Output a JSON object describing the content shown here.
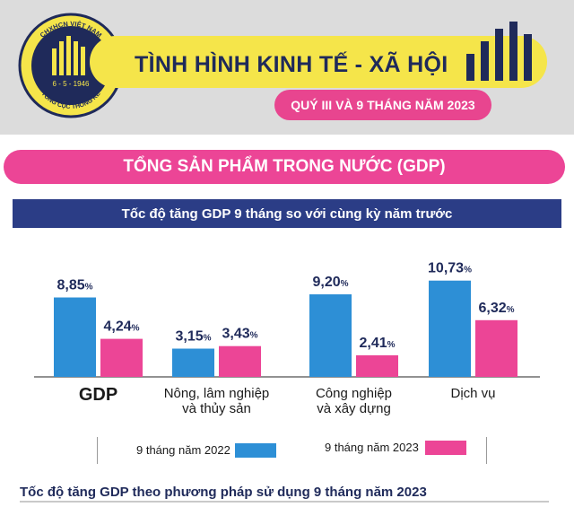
{
  "header": {
    "title": "TÌNH HÌNH KINH TẾ - XÃ HỘI",
    "subtitle": "QUÝ III VÀ 9 THÁNG NĂM 2023",
    "logo_text_top": "CHXHCN VIỆT NAM",
    "logo_text_bottom": "TỔNG CỤC THỐNG KÊ",
    "logo_date": "6 - 5 - 1946"
  },
  "section_title": "TỔNG SẢN PHẨM TRONG NƯỚC (GDP)",
  "chart_data": {
    "type": "bar",
    "title": "Tốc độ tăng GDP 9 tháng so với cùng kỳ năm trước",
    "categories": [
      "GDP",
      "Nông, lâm nghiệp và thủy sản",
      "Công nghiệp và xây dựng",
      "Dịch vụ"
    ],
    "category_lines": [
      [
        "GDP"
      ],
      [
        "Nông, lâm nghiệp",
        "và thủy sản"
      ],
      [
        "Công nghiệp",
        "và xây dựng"
      ],
      [
        "Dịch vụ"
      ]
    ],
    "series": [
      {
        "name": "9 tháng năm 2022",
        "color": "#2d8fd6",
        "values": [
          8.85,
          3.15,
          9.2,
          10.73
        ],
        "labels": [
          "8,85",
          "3,15",
          "9,20",
          "10,73"
        ]
      },
      {
        "name": "9 tháng năm 2023",
        "color": "#ec4596",
        "values": [
          4.24,
          3.43,
          2.41,
          6.32
        ],
        "labels": [
          "4,24",
          "3,43",
          "2,41",
          "6,32"
        ]
      }
    ],
    "unit": "%",
    "ylim": [
      0,
      12
    ],
    "legend_position": "bottom"
  },
  "next_section_title": "Tốc độ tăng GDP theo phương pháp sử dụng 9 tháng năm 2023",
  "colors": {
    "navy": "#2b3d86",
    "pink": "#ec4596",
    "yellow": "#f5e54a",
    "blue": "#2d8fd6"
  }
}
